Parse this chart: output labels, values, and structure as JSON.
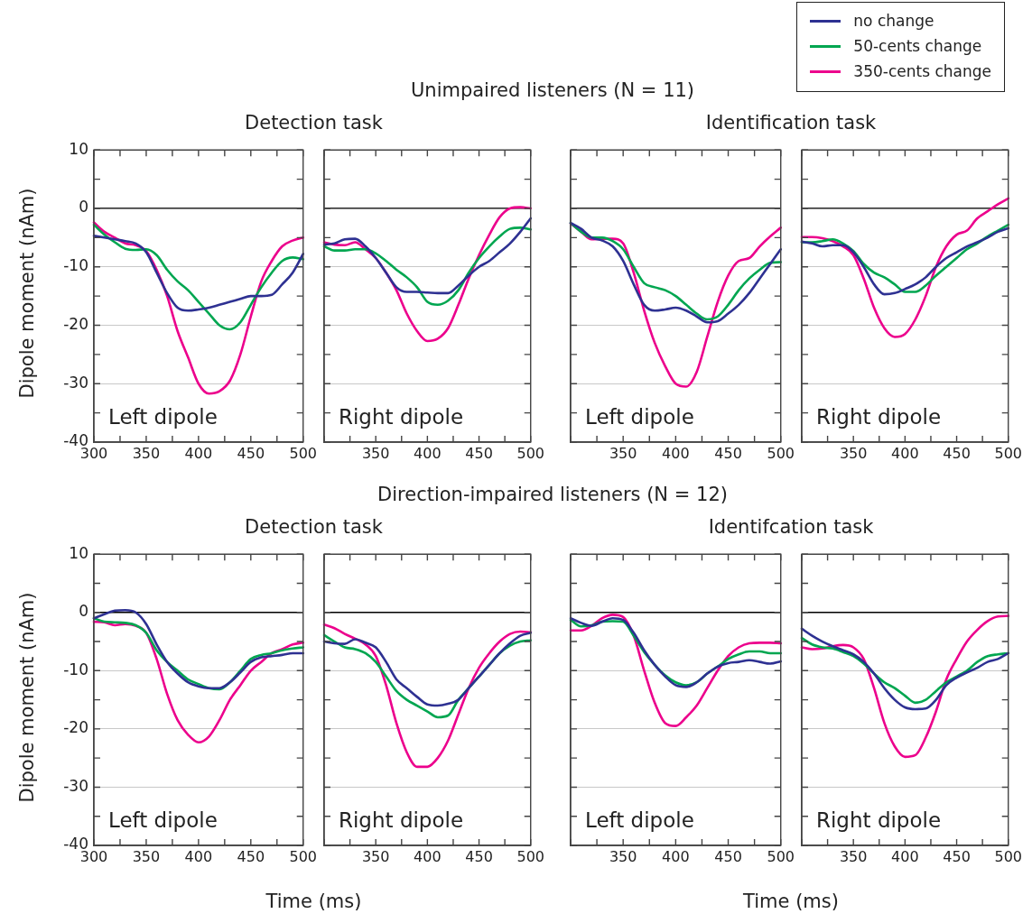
{
  "chart_data": [
    {
      "type": "other",
      "title": "Unimpaired listeners (N = 11)"
    },
    {
      "type": "line",
      "title": "Detection task",
      "ylabel": "Dipole moment (nAm)",
      "annotations": [
        "Left dipole"
      ],
      "grid": "y",
      "xlim": [
        300,
        500
      ],
      "ylim": [
        -40,
        10
      ],
      "xticks": [
        300,
        {
          "value": 325,
          "label": null
        },
        350,
        {
          "value": 375,
          "label": null
        },
        400,
        {
          "value": 425,
          "label": null
        },
        450,
        {
          "value": 475,
          "label": null
        },
        500
      ],
      "yticks": [
        10,
        {
          "value": 5,
          "label": null
        },
        0,
        {
          "value": -5,
          "label": null
        },
        -10,
        {
          "value": -15,
          "label": null
        },
        -20,
        {
          "value": -25,
          "label": null
        },
        -30,
        {
          "value": -35,
          "label": null
        },
        -40
      ],
      "ref_lines": [
        {
          "axis": "y",
          "value": 0,
          "color": "#000000"
        }
      ],
      "x": [
        300,
        310,
        320,
        330,
        340,
        350,
        360,
        370,
        380,
        390,
        400,
        410,
        420,
        430,
        440,
        450,
        460,
        470,
        480,
        490,
        500
      ],
      "series": [
        {
          "color": "#2e3192",
          "values": [
            -4.7,
            -5,
            -5.3,
            -5.6,
            -6,
            -7.5,
            -11,
            -14.5,
            -17,
            -17.5,
            -17.3,
            -17,
            -16.5,
            -16,
            -15.5,
            -15,
            -15,
            -14.8,
            -13,
            -11,
            -7.8
          ]
        },
        {
          "color": "#00a650",
          "values": [
            -2.8,
            -4.5,
            -5.8,
            -6.9,
            -7.1,
            -7,
            -8,
            -10.5,
            -12.5,
            -14,
            -16,
            -18,
            -20,
            -20.7,
            -19.5,
            -16.5,
            -13.5,
            -11,
            -9,
            -8.4,
            -8.7
          ]
        },
        {
          "color": "#ec008c",
          "values": [
            -2.4,
            -4,
            -5,
            -6,
            -6.3,
            -7.3,
            -10.5,
            -15,
            -21,
            -25.5,
            -30,
            -31.7,
            -31.3,
            -29.5,
            -25,
            -18.5,
            -12.5,
            -9,
            -6.5,
            -5.5,
            -5
          ]
        }
      ]
    },
    {
      "type": "line",
      "annotations": [
        "Right dipole"
      ],
      "grid": "y",
      "tick_labels": "x",
      "xlim": [
        300,
        500
      ],
      "ylim": [
        -40,
        10
      ],
      "xticks": [
        {
          "value": 300,
          "label": null
        },
        {
          "value": 325,
          "label": null
        },
        350,
        {
          "value": 375,
          "label": null
        },
        400,
        {
          "value": 425,
          "label": null
        },
        450,
        {
          "value": 475,
          "label": null
        },
        500
      ],
      "yticks": [
        10,
        {
          "value": 5,
          "label": null
        },
        0,
        {
          "value": -5,
          "label": null
        },
        -10,
        {
          "value": -15,
          "label": null
        },
        -20,
        {
          "value": -25,
          "label": null
        },
        -30,
        {
          "value": -35,
          "label": null
        },
        -40
      ],
      "ref_lines": [
        {
          "axis": "y",
          "value": 0,
          "color": "#000000"
        }
      ],
      "x": [
        300,
        310,
        320,
        330,
        340,
        350,
        360,
        370,
        380,
        390,
        400,
        410,
        420,
        430,
        440,
        450,
        460,
        470,
        480,
        490,
        500
      ],
      "series": [
        {
          "color": "#2e3192",
          "values": [
            -6.2,
            -6,
            -5.3,
            -5.2,
            -6.5,
            -8.5,
            -11,
            -13.5,
            -14.3,
            -14.3,
            -14.4,
            -14.5,
            -14.5,
            -13.2,
            -11.5,
            -10,
            -9,
            -7.5,
            -6,
            -4,
            -1.7
          ]
        },
        {
          "color": "#00a650",
          "values": [
            -6.5,
            -7.2,
            -7.2,
            -7,
            -7,
            -7.7,
            -9,
            -10.5,
            -11.8,
            -13.5,
            -16,
            -16.5,
            -15.8,
            -14,
            -11,
            -8.5,
            -6.5,
            -4.8,
            -3.5,
            -3.3,
            -3.6
          ]
        },
        {
          "color": "#ec008c",
          "values": [
            -5.8,
            -6.2,
            -6.3,
            -5.8,
            -7,
            -8.5,
            -11,
            -14,
            -18,
            -21,
            -22.7,
            -22.3,
            -20.5,
            -16.5,
            -12,
            -8,
            -4.5,
            -1.5,
            0,
            0.2,
            0
          ]
        }
      ]
    },
    {
      "type": "line",
      "title": "Identification task",
      "annotations": [
        "Left dipole"
      ],
      "grid": "y",
      "tick_labels": "x",
      "xlim": [
        300,
        500
      ],
      "ylim": [
        -40,
        10
      ],
      "xticks": [
        {
          "value": 300,
          "label": null
        },
        {
          "value": 325,
          "label": null
        },
        350,
        {
          "value": 375,
          "label": null
        },
        400,
        {
          "value": 425,
          "label": null
        },
        450,
        {
          "value": 475,
          "label": null
        },
        500
      ],
      "yticks": [
        10,
        {
          "value": 5,
          "label": null
        },
        0,
        {
          "value": -5,
          "label": null
        },
        -10,
        {
          "value": -15,
          "label": null
        },
        -20,
        {
          "value": -25,
          "label": null
        },
        -30,
        {
          "value": -35,
          "label": null
        },
        -40
      ],
      "ref_lines": [
        {
          "axis": "y",
          "value": 0,
          "color": "#000000"
        }
      ],
      "x": [
        300,
        310,
        320,
        330,
        340,
        350,
        360,
        370,
        380,
        390,
        400,
        410,
        420,
        430,
        440,
        450,
        460,
        470,
        480,
        490,
        500
      ],
      "series": [
        {
          "color": "#2e3192",
          "values": [
            -2.5,
            -3.5,
            -5,
            -5.5,
            -6.5,
            -9,
            -13,
            -16.5,
            -17.5,
            -17.3,
            -17,
            -17.5,
            -18.5,
            -19.5,
            -19.3,
            -18,
            -16.5,
            -14.5,
            -12,
            -9.5,
            -7
          ]
        },
        {
          "color": "#00a650",
          "values": [
            -2.5,
            -4,
            -5,
            -5,
            -5.6,
            -7,
            -10,
            -12.8,
            -13.5,
            -14,
            -15,
            -16.5,
            -18,
            -19,
            -18.5,
            -16.5,
            -14,
            -12,
            -10.5,
            -9.3,
            -9.2
          ]
        },
        {
          "color": "#ec008c",
          "values": [
            -2.6,
            -4,
            -5.3,
            -5.2,
            -5.2,
            -6,
            -11,
            -17.5,
            -23,
            -27,
            -30,
            -30.5,
            -28,
            -22,
            -16,
            -11.5,
            -9,
            -8.5,
            -6.5,
            -4.8,
            -3.3
          ]
        }
      ]
    },
    {
      "type": "line",
      "annotations": [
        "Right dipole"
      ],
      "grid": "y",
      "tick_labels": "x",
      "xlim": [
        300,
        500
      ],
      "ylim": [
        -40,
        10
      ],
      "xticks": [
        {
          "value": 300,
          "label": null
        },
        {
          "value": 325,
          "label": null
        },
        350,
        {
          "value": 375,
          "label": null
        },
        400,
        {
          "value": 425,
          "label": null
        },
        450,
        {
          "value": 475,
          "label": null
        },
        500
      ],
      "yticks": [
        10,
        {
          "value": 5,
          "label": null
        },
        0,
        {
          "value": -5,
          "label": null
        },
        -10,
        {
          "value": -15,
          "label": null
        },
        -20,
        {
          "value": -25,
          "label": null
        },
        -30,
        {
          "value": -35,
          "label": null
        },
        -40
      ],
      "ref_lines": [
        {
          "axis": "y",
          "value": 0,
          "color": "#000000"
        }
      ],
      "x": [
        300,
        310,
        320,
        330,
        340,
        350,
        360,
        370,
        380,
        390,
        400,
        410,
        420,
        430,
        440,
        450,
        460,
        470,
        480,
        490,
        500
      ],
      "series": [
        {
          "name": "no change",
          "color": "#2e3192",
          "values": [
            -5.7,
            -6,
            -6.5,
            -6.3,
            -6.3,
            -7.5,
            -10,
            -13,
            -14.7,
            -14.5,
            -13.8,
            -13,
            -11.8,
            -10,
            -8.5,
            -7.5,
            -6.5,
            -5.8,
            -5,
            -4,
            -3.4
          ]
        },
        {
          "name": "50-cents change",
          "color": "#00a650",
          "values": [
            -5.8,
            -5.8,
            -5.6,
            -5.3,
            -6,
            -7.3,
            -9.5,
            -11,
            -11.8,
            -13,
            -14.3,
            -14.3,
            -13.2,
            -11.5,
            -10,
            -8.5,
            -7,
            -6,
            -4.8,
            -3.8,
            -2.8
          ]
        },
        {
          "name": "350-cents change",
          "color": "#ec008c",
          "values": [
            -4.9,
            -4.9,
            -5.1,
            -5.6,
            -6.5,
            -8,
            -12,
            -17,
            -20.5,
            -22,
            -21.5,
            -19,
            -15,
            -10,
            -6.5,
            -4.5,
            -3.8,
            -1.7,
            -0.5,
            0.7,
            1.7
          ]
        }
      ],
      "legend": "top right"
    },
    {
      "type": "other",
      "title": "Direction-impaired listeners (N = 12)"
    },
    {
      "type": "line",
      "title": "Detection task",
      "ylabel": "Dipole moment (nAm)",
      "xlabel": "Time (ms)",
      "annotations": [
        "Left dipole"
      ],
      "grid": "y",
      "xlim": [
        300,
        500
      ],
      "ylim": [
        -40,
        10
      ],
      "xticks": [
        300,
        {
          "value": 325,
          "label": null
        },
        350,
        {
          "value": 375,
          "label": null
        },
        400,
        {
          "value": 425,
          "label": null
        },
        450,
        {
          "value": 475,
          "label": null
        },
        500
      ],
      "yticks": [
        10,
        {
          "value": 5,
          "label": null
        },
        0,
        {
          "value": -5,
          "label": null
        },
        -10,
        {
          "value": -15,
          "label": null
        },
        -20,
        {
          "value": -25,
          "label": null
        },
        -30,
        {
          "value": -35,
          "label": null
        },
        -40
      ],
      "ref_lines": [
        {
          "axis": "y",
          "value": 0,
          "color": "#000000"
        }
      ],
      "x": [
        300,
        310,
        320,
        330,
        340,
        350,
        360,
        370,
        380,
        390,
        400,
        410,
        420,
        430,
        440,
        450,
        460,
        470,
        480,
        490,
        500
      ],
      "series": [
        {
          "color": "#2e3192",
          "values": [
            -1,
            -0.3,
            0.3,
            0.4,
            0,
            -2,
            -5.5,
            -8.5,
            -10.5,
            -12,
            -12.7,
            -13,
            -13,
            -12,
            -10.3,
            -8.5,
            -7.7,
            -7.5,
            -7.3,
            -7,
            -7
          ]
        },
        {
          "color": "#00a650",
          "values": [
            -1,
            -1.6,
            -1.7,
            -1.8,
            -2.2,
            -3.5,
            -6.5,
            -8.5,
            -10,
            -11.5,
            -12.3,
            -13,
            -13.2,
            -12,
            -10,
            -8,
            -7.3,
            -7,
            -6.5,
            -6.2,
            -6
          ]
        },
        {
          "color": "#ec008c",
          "values": [
            -1.6,
            -1.7,
            -2.2,
            -2,
            -2.3,
            -3.5,
            -8,
            -14,
            -18.5,
            -21,
            -22.3,
            -21.3,
            -18.5,
            -15,
            -12.5,
            -10,
            -8.5,
            -7,
            -6.3,
            -5.5,
            -5.2
          ]
        }
      ]
    },
    {
      "type": "line",
      "annotations": [
        "Right dipole"
      ],
      "grid": "y",
      "tick_labels": "x",
      "xlim": [
        300,
        500
      ],
      "ylim": [
        -40,
        10
      ],
      "xticks": [
        {
          "value": 300,
          "label": null
        },
        {
          "value": 325,
          "label": null
        },
        350,
        {
          "value": 375,
          "label": null
        },
        400,
        {
          "value": 425,
          "label": null
        },
        450,
        {
          "value": 475,
          "label": null
        },
        500
      ],
      "yticks": [
        10,
        {
          "value": 5,
          "label": null
        },
        0,
        {
          "value": -5,
          "label": null
        },
        -10,
        {
          "value": -15,
          "label": null
        },
        -20,
        {
          "value": -25,
          "label": null
        },
        -30,
        {
          "value": -35,
          "label": null
        },
        -40
      ],
      "ref_lines": [
        {
          "axis": "y",
          "value": 0,
          "color": "#000000"
        }
      ],
      "x": [
        300,
        310,
        320,
        330,
        340,
        350,
        360,
        370,
        380,
        390,
        400,
        410,
        420,
        430,
        440,
        450,
        460,
        470,
        480,
        490,
        500
      ],
      "series": [
        {
          "color": "#2e3192",
          "values": [
            -5,
            -5.3,
            -5.4,
            -4.6,
            -5.2,
            -6,
            -8.5,
            -11.5,
            -13,
            -14.5,
            -15.8,
            -16,
            -15.7,
            -15,
            -13,
            -11,
            -9,
            -7,
            -5.3,
            -4,
            -3.5
          ]
        },
        {
          "color": "#00a650",
          "values": [
            -3.9,
            -5,
            -6,
            -6.3,
            -7,
            -8.5,
            -11,
            -13.5,
            -15,
            -16,
            -17,
            -18,
            -17.7,
            -15,
            -13,
            -11,
            -9,
            -7,
            -5.7,
            -5,
            -4.8
          ]
        },
        {
          "color": "#ec008c",
          "values": [
            -2.1,
            -2.7,
            -3.7,
            -4.5,
            -5.5,
            -7.5,
            -12.5,
            -19,
            -24,
            -26.5,
            -26.5,
            -25,
            -22,
            -17.5,
            -13,
            -9.5,
            -7,
            -5,
            -3.7,
            -3.3,
            -3.4
          ]
        }
      ]
    },
    {
      "type": "line",
      "title": "Identifcation task",
      "xlabel": "Time (ms)",
      "annotations": [
        "Left dipole"
      ],
      "grid": "y",
      "tick_labels": "x",
      "xlim": [
        300,
        500
      ],
      "ylim": [
        -40,
        10
      ],
      "xticks": [
        {
          "value": 300,
          "label": null
        },
        {
          "value": 325,
          "label": null
        },
        350,
        {
          "value": 375,
          "label": null
        },
        400,
        {
          "value": 425,
          "label": null
        },
        450,
        {
          "value": 475,
          "label": null
        },
        500
      ],
      "yticks": [
        10,
        {
          "value": 5,
          "label": null
        },
        0,
        {
          "value": -5,
          "label": null
        },
        -10,
        {
          "value": -15,
          "label": null
        },
        -20,
        {
          "value": -25,
          "label": null
        },
        -30,
        {
          "value": -35,
          "label": null
        },
        -40
      ],
      "ref_lines": [
        {
          "axis": "y",
          "value": 0,
          "color": "#000000"
        }
      ],
      "x": [
        300,
        310,
        320,
        330,
        340,
        350,
        360,
        370,
        380,
        390,
        400,
        410,
        420,
        430,
        440,
        450,
        460,
        470,
        480,
        490,
        500
      ],
      "series": [
        {
          "color": "#2e3192",
          "values": [
            -1,
            -1.8,
            -2.3,
            -1.6,
            -1,
            -1.3,
            -3.5,
            -6.5,
            -9,
            -11,
            -12.5,
            -12.8,
            -12,
            -10.5,
            -9.3,
            -8.7,
            -8.5,
            -8.2,
            -8.5,
            -8.8,
            -8.4
          ]
        },
        {
          "color": "#00a650",
          "values": [
            -1.3,
            -2.4,
            -2.2,
            -1.6,
            -1.5,
            -1.6,
            -4,
            -6.8,
            -9,
            -10.8,
            -12,
            -12.5,
            -12,
            -10.5,
            -9.3,
            -8,
            -7.2,
            -6.7,
            -6.7,
            -7,
            -7
          ]
        },
        {
          "color": "#ec008c",
          "values": [
            -3.1,
            -3.1,
            -2.3,
            -1,
            -0.4,
            -0.8,
            -4,
            -10,
            -15.5,
            -19,
            -19.5,
            -18,
            -16,
            -13,
            -10,
            -7.5,
            -6,
            -5.3,
            -5.2,
            -5.2,
            -5.3
          ]
        }
      ]
    },
    {
      "type": "line",
      "annotations": [
        "Right dipole"
      ],
      "grid": "y",
      "tick_labels": "x",
      "xlim": [
        300,
        500
      ],
      "ylim": [
        -40,
        10
      ],
      "xticks": [
        {
          "value": 300,
          "label": null
        },
        {
          "value": 325,
          "label": null
        },
        350,
        {
          "value": 375,
          "label": null
        },
        400,
        {
          "value": 425,
          "label": null
        },
        450,
        {
          "value": 475,
          "label": null
        },
        500
      ],
      "yticks": [
        10,
        {
          "value": 5,
          "label": null
        },
        0,
        {
          "value": -5,
          "label": null
        },
        -10,
        {
          "value": -15,
          "label": null
        },
        -20,
        {
          "value": -25,
          "label": null
        },
        -30,
        {
          "value": -35,
          "label": null
        },
        -40
      ],
      "ref_lines": [
        {
          "axis": "y",
          "value": 0,
          "color": "#000000"
        }
      ],
      "x": [
        300,
        310,
        320,
        330,
        340,
        350,
        360,
        370,
        380,
        390,
        400,
        410,
        420,
        430,
        440,
        450,
        460,
        470,
        480,
        490,
        500
      ],
      "series": [
        {
          "color": "#2e3192",
          "values": [
            -2.8,
            -4,
            -5,
            -5.8,
            -6.5,
            -7.2,
            -8.5,
            -10.5,
            -13,
            -15,
            -16.3,
            -16.6,
            -16.5,
            -15,
            -12.5,
            -11.2,
            -10.3,
            -9.5,
            -8.5,
            -8,
            -7
          ]
        },
        {
          "color": "#00a650",
          "values": [
            -4.4,
            -5.5,
            -6,
            -6.2,
            -6.8,
            -7.5,
            -8.8,
            -10.5,
            -12,
            -13,
            -14.3,
            -15.5,
            -15,
            -13.5,
            -12,
            -11,
            -10,
            -8.5,
            -7.5,
            -7.2,
            -7
          ]
        },
        {
          "color": "#ec008c",
          "values": [
            -6,
            -6.3,
            -6.2,
            -5.8,
            -5.6,
            -6,
            -8,
            -13,
            -19,
            -23,
            -24.8,
            -24.5,
            -21.5,
            -17,
            -11.5,
            -8,
            -5,
            -3,
            -1.5,
            -0.7,
            -0.6
          ]
        }
      ]
    }
  ]
}
